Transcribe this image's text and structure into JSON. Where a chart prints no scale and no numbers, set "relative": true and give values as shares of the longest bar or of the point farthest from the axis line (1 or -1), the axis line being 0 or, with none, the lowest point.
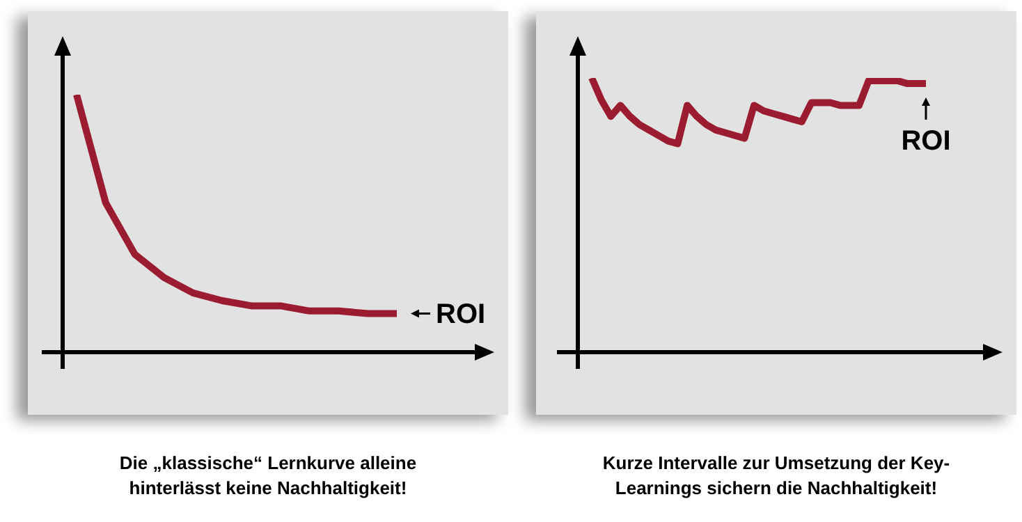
{
  "chart_data": [
    {
      "type": "line",
      "relative": true,
      "title": "Die „klassische“ Lernkurve alleine hinterlässt keine Nachhaltigkeit!",
      "categories": [
        null,
        null,
        null,
        null,
        null,
        null,
        null,
        null,
        null,
        null,
        null,
        null
      ],
      "values": [
        1,
        0.58,
        0.38,
        0.29,
        0.23,
        0.2,
        0.18,
        0.18,
        0.16,
        0.16,
        0.15,
        0.15
      ],
      "color": "#9b1b30",
      "annotations": [
        "ROI"
      ]
    },
    {
      "type": "line",
      "relative": true,
      "title": "Kurze Intervalle zur Umsetzung der Key-Learnings sichern die Nachhaltigkeit!",
      "categories": [
        null,
        null,
        null,
        null,
        null,
        null,
        null,
        null,
        null,
        null,
        null,
        null,
        null,
        null,
        null,
        null,
        null,
        null,
        null,
        null,
        null,
        null,
        null,
        null,
        null,
        null,
        null,
        null,
        null,
        null,
        null,
        null,
        null,
        null,
        null,
        null
      ],
      "values": [
        1,
        0.92,
        0.86,
        0.9,
        0.86,
        0.83,
        0.81,
        0.79,
        0.77,
        0.76,
        0.9,
        0.86,
        0.83,
        0.81,
        0.8,
        0.79,
        0.78,
        0.9,
        0.88,
        0.87,
        0.86,
        0.85,
        0.84,
        0.91,
        0.91,
        0.91,
        0.9,
        0.9,
        0.9,
        0.99,
        0.99,
        0.99,
        0.99,
        0.98,
        0.98,
        0.98
      ],
      "color": "#9b1b30",
      "annotations": [
        "ROI"
      ]
    }
  ]
}
